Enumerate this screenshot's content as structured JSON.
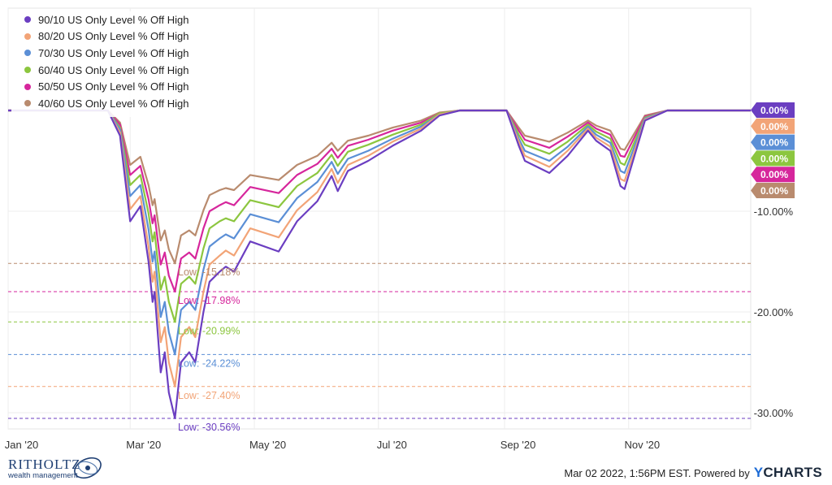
{
  "chart_data": {
    "type": "line",
    "x_range": [
      "2020-01-01",
      "2020-12-31"
    ],
    "ylim": [
      -32,
      1
    ],
    "x_ticks": [
      "Jan '20",
      "Mar '20",
      "May '20",
      "Jul '20",
      "Sep '20",
      "Nov '20"
    ],
    "y_ticks": [
      "-10.00%",
      "-20.00%",
      "-30.00%"
    ],
    "grid": true,
    "legend_position": "top-left",
    "series": [
      {
        "name": "90/10 US Only Level % Off High",
        "color": "#6b3ec1",
        "end_label": "0.00%",
        "low_label": "Low: -30.56%",
        "low": -30.56,
        "dates": [
          "2020-01-01",
          "2020-01-20",
          "2020-02-19",
          "2020-02-25",
          "2020-03-01",
          "2020-03-06",
          "2020-03-10",
          "2020-03-12",
          "2020-03-13",
          "2020-03-16",
          "2020-03-18",
          "2020-03-20",
          "2020-03-23",
          "2020-03-26",
          "2020-03-30",
          "2020-04-02",
          "2020-04-06",
          "2020-04-09",
          "2020-04-14",
          "2020-04-17",
          "2020-04-21",
          "2020-04-29",
          "2020-05-13",
          "2020-05-22",
          "2020-06-01",
          "2020-06-08",
          "2020-06-11",
          "2020-06-16",
          "2020-06-26",
          "2020-07-08",
          "2020-07-22",
          "2020-07-31",
          "2020-08-10",
          "2020-08-20",
          "2020-08-31",
          "2020-09-02",
          "2020-09-08",
          "2020-09-11",
          "2020-09-23",
          "2020-10-02",
          "2020-10-12",
          "2020-10-16",
          "2020-10-23",
          "2020-10-28",
          "2020-10-30",
          "2020-11-09",
          "2020-11-20",
          "2020-12-08",
          "2020-12-31"
        ],
        "values": [
          0,
          0,
          0,
          -2.5,
          -11,
          -9.5,
          -15,
          -19,
          -18,
          -26,
          -24,
          -28,
          -30.56,
          -25,
          -24,
          -25,
          -20,
          -17,
          -16,
          -15.5,
          -16,
          -13,
          -14,
          -11,
          -9,
          -6.5,
          -8,
          -6,
          -5,
          -3.5,
          -2,
          -0.5,
          0,
          0,
          0,
          0,
          -3.5,
          -5,
          -6.2,
          -4.5,
          -2,
          -3,
          -4,
          -7.5,
          -7.8,
          -1,
          0,
          0,
          0
        ]
      },
      {
        "name": "80/20 US Only Level % Off High",
        "color": "#f2a477",
        "end_label": "0.00%",
        "low_label": "Low: -27.40%",
        "low": -27.4,
        "dates": [
          "2020-01-01",
          "2020-01-20",
          "2020-02-19",
          "2020-02-25",
          "2020-03-01",
          "2020-03-06",
          "2020-03-10",
          "2020-03-12",
          "2020-03-13",
          "2020-03-16",
          "2020-03-18",
          "2020-03-20",
          "2020-03-23",
          "2020-03-26",
          "2020-03-30",
          "2020-04-02",
          "2020-04-06",
          "2020-04-09",
          "2020-04-14",
          "2020-04-17",
          "2020-04-21",
          "2020-04-29",
          "2020-05-13",
          "2020-05-22",
          "2020-06-01",
          "2020-06-08",
          "2020-06-11",
          "2020-06-16",
          "2020-06-26",
          "2020-07-08",
          "2020-07-22",
          "2020-07-31",
          "2020-08-10",
          "2020-08-20",
          "2020-08-31",
          "2020-09-02",
          "2020-09-08",
          "2020-09-11",
          "2020-09-23",
          "2020-10-02",
          "2020-10-12",
          "2020-10-16",
          "2020-10-23",
          "2020-10-28",
          "2020-10-30",
          "2020-11-09",
          "2020-11-20",
          "2020-12-08",
          "2020-12-31"
        ],
        "values": [
          0,
          0,
          0,
          -2.2,
          -9.8,
          -8.5,
          -13.5,
          -17,
          -16,
          -23,
          -21.5,
          -25,
          -27.4,
          -22.5,
          -21.5,
          -22.5,
          -18,
          -15.3,
          -14.4,
          -13.9,
          -14.4,
          -11.7,
          -12.6,
          -9.9,
          -8.1,
          -5.8,
          -7.2,
          -5.4,
          -4.5,
          -3.1,
          -1.8,
          -0.4,
          0,
          0,
          0,
          0,
          -3.1,
          -4.5,
          -5.6,
          -4,
          -1.8,
          -2.7,
          -3.6,
          -6.8,
          -7,
          -0.9,
          0,
          0,
          0
        ]
      },
      {
        "name": "70/30 US Only Level % Off High",
        "color": "#5b8fd6",
        "end_label": "0.00%",
        "low_label": "Low: -24.22%",
        "low": -24.22,
        "dates": [
          "2020-01-01",
          "2020-01-20",
          "2020-02-19",
          "2020-02-25",
          "2020-03-01",
          "2020-03-06",
          "2020-03-10",
          "2020-03-12",
          "2020-03-13",
          "2020-03-16",
          "2020-03-18",
          "2020-03-20",
          "2020-03-23",
          "2020-03-26",
          "2020-03-30",
          "2020-04-02",
          "2020-04-06",
          "2020-04-09",
          "2020-04-14",
          "2020-04-17",
          "2020-04-21",
          "2020-04-29",
          "2020-05-13",
          "2020-05-22",
          "2020-06-01",
          "2020-06-08",
          "2020-06-11",
          "2020-06-16",
          "2020-06-26",
          "2020-07-08",
          "2020-07-22",
          "2020-07-31",
          "2020-08-10",
          "2020-08-20",
          "2020-08-31",
          "2020-09-02",
          "2020-09-08",
          "2020-09-11",
          "2020-09-23",
          "2020-10-02",
          "2020-10-12",
          "2020-10-16",
          "2020-10-23",
          "2020-10-28",
          "2020-10-30",
          "2020-11-09",
          "2020-11-20",
          "2020-12-08",
          "2020-12-31"
        ],
        "values": [
          0,
          0,
          0,
          -1.9,
          -8.5,
          -7.4,
          -11.8,
          -15,
          -14,
          -20.5,
          -19,
          -22,
          -24.22,
          -19.8,
          -19,
          -19.8,
          -15.8,
          -13.5,
          -12.7,
          -12.3,
          -12.7,
          -10.3,
          -11.1,
          -8.7,
          -7.1,
          -5.1,
          -6.3,
          -4.8,
          -4,
          -2.8,
          -1.6,
          -0.4,
          0,
          0,
          0,
          0,
          -2.8,
          -4,
          -5,
          -3.6,
          -1.6,
          -2.4,
          -3.2,
          -6,
          -6.2,
          -0.8,
          0,
          0,
          0
        ]
      },
      {
        "name": "60/40 US Only Level % Off High",
        "color": "#8cc63f",
        "end_label": "0.00%",
        "low_label": "Low: -20.99%",
        "low": -20.99,
        "dates": [
          "2020-01-01",
          "2020-01-20",
          "2020-02-19",
          "2020-02-25",
          "2020-03-01",
          "2020-03-06",
          "2020-03-10",
          "2020-03-12",
          "2020-03-13",
          "2020-03-16",
          "2020-03-18",
          "2020-03-20",
          "2020-03-23",
          "2020-03-26",
          "2020-03-30",
          "2020-04-02",
          "2020-04-06",
          "2020-04-09",
          "2020-04-14",
          "2020-04-17",
          "2020-04-21",
          "2020-04-29",
          "2020-05-13",
          "2020-05-22",
          "2020-06-01",
          "2020-06-08",
          "2020-06-11",
          "2020-06-16",
          "2020-06-26",
          "2020-07-08",
          "2020-07-22",
          "2020-07-31",
          "2020-08-10",
          "2020-08-20",
          "2020-08-31",
          "2020-09-02",
          "2020-09-08",
          "2020-09-11",
          "2020-09-23",
          "2020-10-02",
          "2020-10-12",
          "2020-10-16",
          "2020-10-23",
          "2020-10-28",
          "2020-10-30",
          "2020-11-09",
          "2020-11-20",
          "2020-12-08",
          "2020-12-31"
        ],
        "values": [
          0,
          0,
          0,
          -1.7,
          -7.4,
          -6.4,
          -10.2,
          -13,
          -12.1,
          -17.8,
          -16.5,
          -19,
          -20.99,
          -17.2,
          -16.5,
          -17.2,
          -13.7,
          -11.7,
          -11,
          -10.7,
          -11,
          -8.9,
          -9.6,
          -7.5,
          -6.2,
          -4.4,
          -5.5,
          -4.1,
          -3.4,
          -2.4,
          -1.4,
          -0.3,
          0,
          0,
          0,
          0,
          -2.4,
          -3.4,
          -4.3,
          -3.1,
          -1.4,
          -2.1,
          -2.8,
          -5.2,
          -5.4,
          -0.7,
          0,
          0,
          0
        ]
      },
      {
        "name": "50/50 US Only Level % Off High",
        "color": "#d6269c",
        "end_label": "0.00%",
        "low_label": "Low: -17.98%",
        "low": -17.98,
        "dates": [
          "2020-01-01",
          "2020-01-20",
          "2020-02-19",
          "2020-02-25",
          "2020-03-01",
          "2020-03-06",
          "2020-03-10",
          "2020-03-12",
          "2020-03-13",
          "2020-03-16",
          "2020-03-18",
          "2020-03-20",
          "2020-03-23",
          "2020-03-26",
          "2020-03-30",
          "2020-04-02",
          "2020-04-06",
          "2020-04-09",
          "2020-04-14",
          "2020-04-17",
          "2020-04-21",
          "2020-04-29",
          "2020-05-13",
          "2020-05-22",
          "2020-06-01",
          "2020-06-08",
          "2020-06-11",
          "2020-06-16",
          "2020-06-26",
          "2020-07-08",
          "2020-07-22",
          "2020-07-31",
          "2020-08-10",
          "2020-08-20",
          "2020-08-31",
          "2020-09-02",
          "2020-09-08",
          "2020-09-11",
          "2020-09-23",
          "2020-10-02",
          "2020-10-12",
          "2020-10-16",
          "2020-10-23",
          "2020-10-28",
          "2020-10-30",
          "2020-11-09",
          "2020-11-20",
          "2020-12-08",
          "2020-12-31"
        ],
        "values": [
          0,
          0,
          0,
          -1.4,
          -6.4,
          -5.5,
          -8.8,
          -11.2,
          -10.4,
          -15.3,
          -14.1,
          -16.4,
          -17.98,
          -14.7,
          -14.1,
          -14.7,
          -11.7,
          -10,
          -9.4,
          -9.1,
          -9.4,
          -7.6,
          -8.2,
          -6.4,
          -5.3,
          -3.8,
          -4.7,
          -3.5,
          -2.9,
          -2,
          -1.2,
          -0.3,
          0,
          0,
          0,
          0,
          -2,
          -2.9,
          -3.7,
          -2.6,
          -1.2,
          -1.8,
          -2.4,
          -4.5,
          -4.6,
          -0.6,
          0,
          0,
          0
        ]
      },
      {
        "name": "40/60 US Only Level % Off High",
        "color": "#b98b6e",
        "end_label": "0.00%",
        "low_label": "Low: -15.18%",
        "low": -15.18,
        "dates": [
          "2020-01-01",
          "2020-01-20",
          "2020-02-19",
          "2020-02-25",
          "2020-03-01",
          "2020-03-06",
          "2020-03-10",
          "2020-03-12",
          "2020-03-13",
          "2020-03-16",
          "2020-03-18",
          "2020-03-20",
          "2020-03-23",
          "2020-03-26",
          "2020-03-30",
          "2020-04-02",
          "2020-04-06",
          "2020-04-09",
          "2020-04-14",
          "2020-04-17",
          "2020-04-21",
          "2020-04-29",
          "2020-05-13",
          "2020-05-22",
          "2020-06-01",
          "2020-06-08",
          "2020-06-11",
          "2020-06-16",
          "2020-06-26",
          "2020-07-08",
          "2020-07-22",
          "2020-07-31",
          "2020-08-10",
          "2020-08-20",
          "2020-08-31",
          "2020-09-02",
          "2020-09-08",
          "2020-09-11",
          "2020-09-23",
          "2020-10-02",
          "2020-10-12",
          "2020-10-16",
          "2020-10-23",
          "2020-10-28",
          "2020-10-30",
          "2020-11-09",
          "2020-11-20",
          "2020-12-08",
          "2020-12-31"
        ],
        "values": [
          0,
          0,
          0,
          -1.2,
          -5.4,
          -4.6,
          -7.4,
          -9.4,
          -8.8,
          -12.9,
          -11.9,
          -13.8,
          -15.18,
          -12.4,
          -11.9,
          -12.4,
          -9.9,
          -8.4,
          -7.9,
          -7.7,
          -7.9,
          -6.4,
          -6.9,
          -5.4,
          -4.5,
          -3.2,
          -4,
          -3,
          -2.5,
          -1.7,
          -1,
          -0.2,
          0,
          0,
          0,
          0,
          -1.7,
          -2.5,
          -3.1,
          -2.2,
          -1,
          -1.5,
          -2,
          -3.8,
          -3.9,
          -0.5,
          0,
          0,
          0
        ]
      }
    ]
  },
  "footer": {
    "brand_name": "RITHOLTZ",
    "brand_sub": "wealth management",
    "attribution": "Mar 02 2022, 1:56PM EST. Powered by",
    "ycharts_y": "Y",
    "ycharts_rest": "CHARTS"
  }
}
